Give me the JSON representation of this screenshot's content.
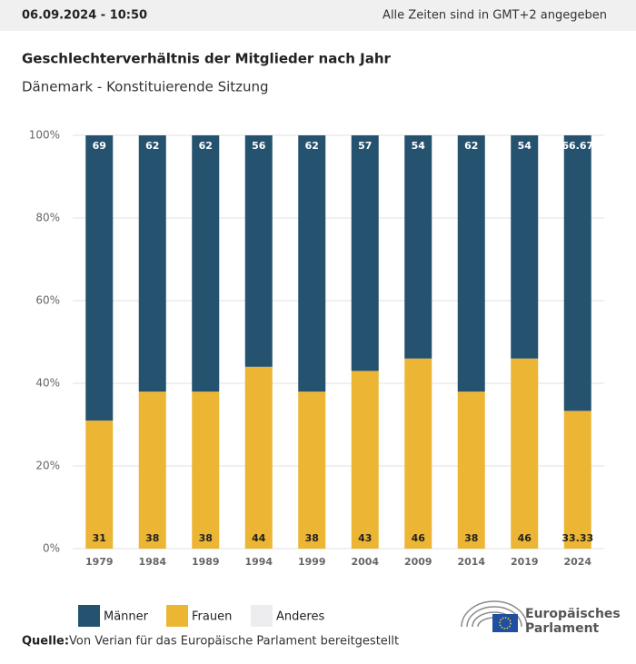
{
  "header": {
    "timestamp": "06.09.2024 - 10:50",
    "timezone_note": "Alle Zeiten sind in GMT+2 angegeben"
  },
  "chart_data": {
    "type": "stacked_bar",
    "title": "Geschlechterverhältnis der Mitglieder nach Jahr",
    "subtitle": "Dänemark - Konstituierende Sitzung",
    "categories": [
      "1979",
      "1984",
      "1989",
      "1994",
      "1999",
      "2004",
      "2009",
      "2014",
      "2019",
      "2024"
    ],
    "series": [
      {
        "name": "Männer",
        "color": "#24526f",
        "values": [
          69,
          62,
          62,
          56,
          62,
          57,
          54,
          62,
          54,
          66.67
        ]
      },
      {
        "name": "Frauen",
        "color": "#ecb534",
        "values": [
          31,
          38,
          38,
          44,
          38,
          43,
          46,
          38,
          46,
          33.33
        ]
      },
      {
        "name": "Anderes",
        "color": "#ededf0",
        "values": [
          0,
          0,
          0,
          0,
          0,
          0,
          0,
          0,
          0,
          0
        ]
      }
    ],
    "ylim": [
      0,
      100
    ],
    "yticks": [
      {
        "value": 0,
        "label": "0%"
      },
      {
        "value": 20,
        "label": "20%"
      },
      {
        "value": 40,
        "label": "40%"
      },
      {
        "value": 60,
        "label": "60%"
      },
      {
        "value": 80,
        "label": "80%"
      },
      {
        "value": 100,
        "label": "100%"
      }
    ],
    "grid": true
  },
  "footer": {
    "source_label": "Quelle:",
    "source_text": "Von Verian für das Europäische Parlament bereitgestellt",
    "logo_line1": "Europäisches",
    "logo_line2": "Parlament"
  }
}
